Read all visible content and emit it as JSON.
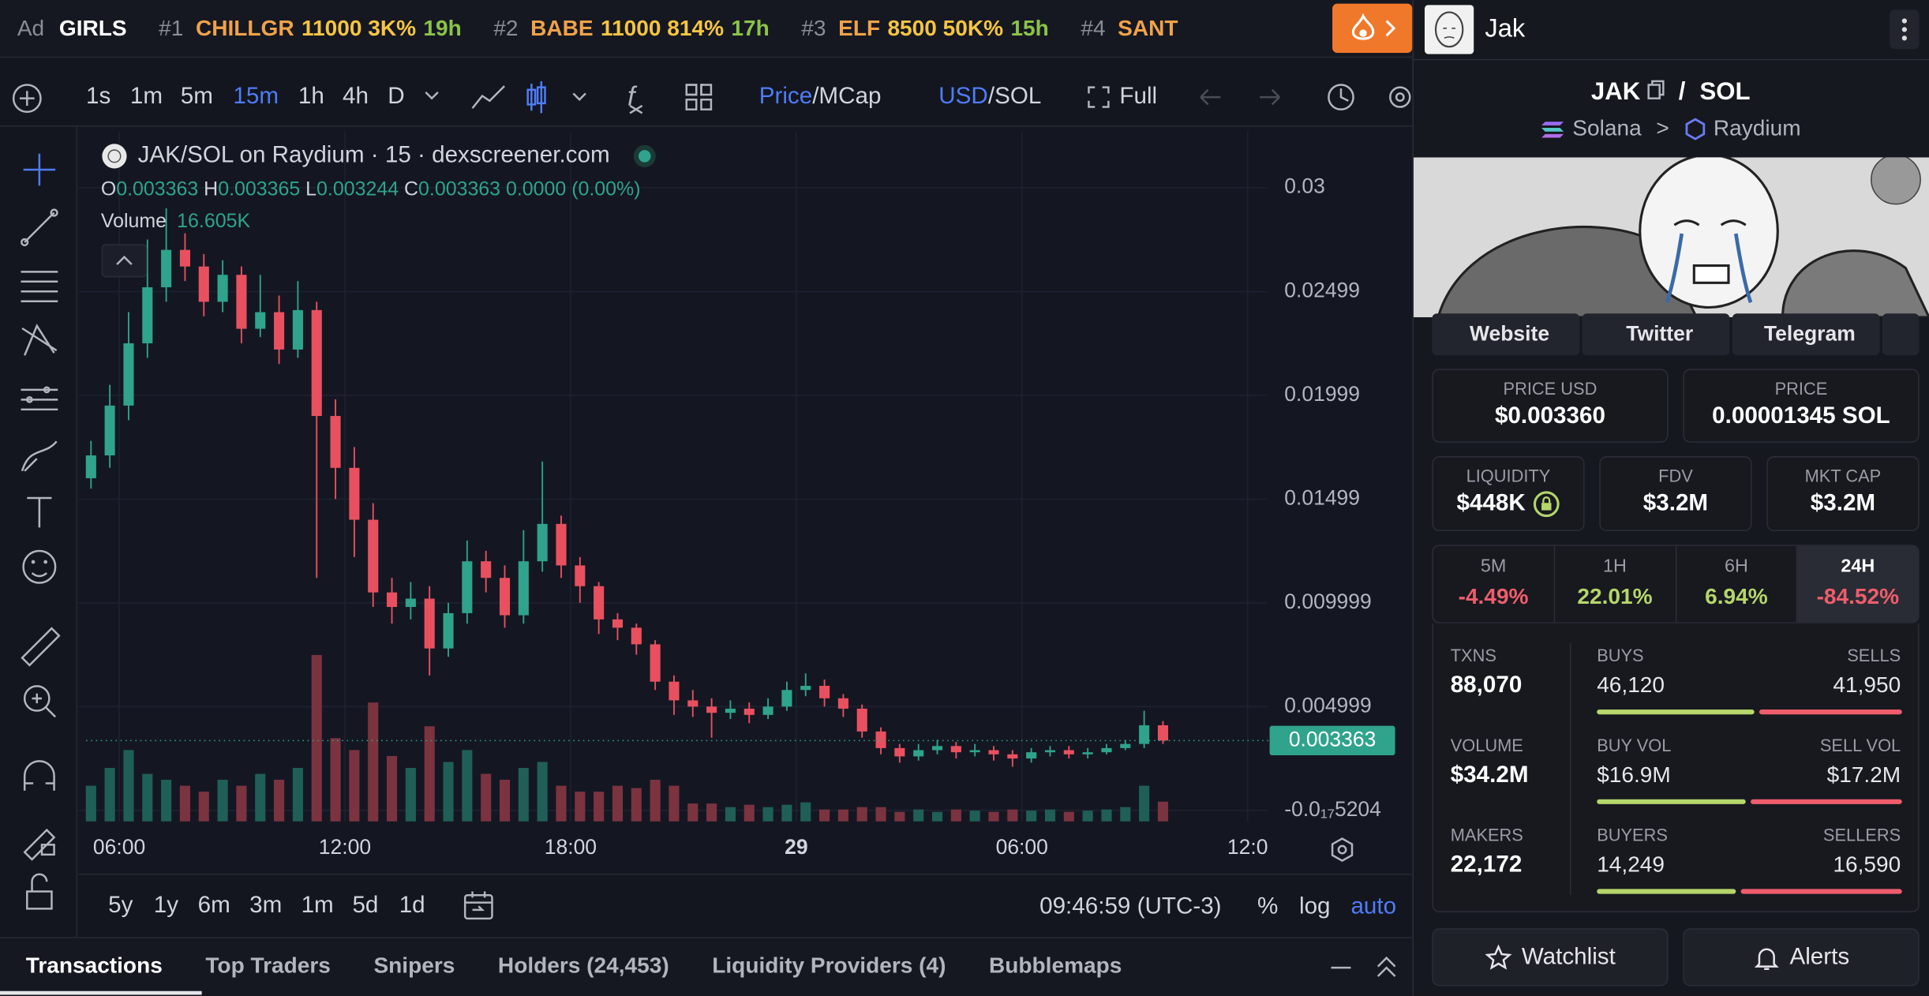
{
  "ticker": {
    "ad": "Ad",
    "ad_name": "GIRLS",
    "items": [
      {
        "rank": "#1",
        "name": "CHILLGR",
        "boost": "11000",
        "change": "3K%",
        "age": "19h"
      },
      {
        "rank": "#2",
        "name": "BABE",
        "boost": "11000",
        "change": "814%",
        "age": "17h"
      },
      {
        "rank": "#3",
        "name": "ELF",
        "boost": "8500",
        "change": "50K%",
        "age": "15h"
      },
      {
        "rank": "#4",
        "name": "SANT"
      }
    ]
  },
  "toolbar": {
    "intervals": [
      "1s",
      "1m",
      "5m",
      "15m",
      "1h",
      "4h",
      "D"
    ],
    "active_interval": 3,
    "price": "Price",
    "mcap": "MCap",
    "usd": "USD",
    "sol": "SOL",
    "separator": "/",
    "full": "Full"
  },
  "chart_data": {
    "type": "candlestick",
    "title": "JAK/SOL on Raydium · 15 · dexscreener.com",
    "legend": {
      "o": "O",
      "o_value": "0.003363",
      "h": "H",
      "h_value": "0.003365",
      "l": "L",
      "l_value": "0.003244",
      "c": "C",
      "c_value": "0.003363",
      "change": "0.0000 (0.00%)",
      "volume": "Volume",
      "volume_value": "16.605K"
    },
    "colors": {
      "up": "#2fa38c",
      "down": "#e9505f",
      "volume_up": "#1f5f57",
      "volume_down": "#7b3340"
    },
    "x": [
      5.25,
      5.75,
      6.25,
      6.75,
      7.25,
      7.75,
      8.25,
      8.75,
      9.25,
      9.75,
      10.25,
      10.75,
      11.25,
      11.75,
      12.25,
      12.75,
      13.25,
      13.75,
      14.25,
      14.75,
      15.25,
      15.75,
      16.25,
      16.75,
      17.25,
      17.75,
      18.25,
      18.75,
      19.25,
      19.75,
      20.25,
      20.75,
      21.25,
      21.75,
      22.25,
      22.75,
      23.25,
      23.75,
      24.25,
      24.75,
      25.25,
      25.75,
      26.25,
      26.75,
      27.25,
      27.75,
      28.25,
      28.75,
      29.25,
      29.75,
      30.25,
      30.75,
      31.25,
      31.75,
      32.25,
      32.75,
      33.25,
      33.75
    ],
    "open": [
      0.016,
      0.0171,
      0.0195,
      0.0225,
      0.0252,
      0.027,
      0.0262,
      0.0245,
      0.0258,
      0.0232,
      0.024,
      0.0222,
      0.0241,
      0.019,
      0.0165,
      0.014,
      0.0105,
      0.0098,
      0.0102,
      0.0078,
      0.0095,
      0.012,
      0.0112,
      0.0094,
      0.012,
      0.0138,
      0.0118,
      0.0108,
      0.0092,
      0.0088,
      0.008,
      0.0062,
      0.0053,
      0.005,
      0.0047,
      0.0049,
      0.0046,
      0.005,
      0.0058,
      0.006,
      0.0054,
      0.0049,
      0.0038,
      0.003,
      0.0026,
      0.0029,
      0.0031,
      0.0028,
      0.0029,
      0.0027,
      0.0025,
      0.0028,
      0.0029,
      0.0027,
      0.0028,
      0.003,
      0.0032,
      0.0041
    ],
    "high": [
      0.0178,
      0.0205,
      0.024,
      0.0275,
      0.029,
      0.0278,
      0.0268,
      0.0265,
      0.0262,
      0.0258,
      0.0248,
      0.0255,
      0.0245,
      0.0198,
      0.0175,
      0.0148,
      0.0112,
      0.011,
      0.0108,
      0.01,
      0.013,
      0.0125,
      0.0118,
      0.0135,
      0.0168,
      0.0142,
      0.0122,
      0.011,
      0.0095,
      0.009,
      0.0082,
      0.0065,
      0.0058,
      0.0054,
      0.0053,
      0.0052,
      0.0054,
      0.0062,
      0.0066,
      0.0063,
      0.0056,
      0.0051,
      0.004,
      0.0032,
      0.0032,
      0.0034,
      0.0033,
      0.0032,
      0.0031,
      0.0029,
      0.003,
      0.0031,
      0.0031,
      0.003,
      0.0032,
      0.0034,
      0.0048,
      0.0043
    ],
    "low": [
      0.0155,
      0.0165,
      0.0188,
      0.0218,
      0.0245,
      0.0255,
      0.0238,
      0.024,
      0.0225,
      0.0228,
      0.0215,
      0.0218,
      0.0112,
      0.015,
      0.0122,
      0.0098,
      0.009,
      0.0092,
      0.0065,
      0.0074,
      0.009,
      0.0105,
      0.0088,
      0.009,
      0.0115,
      0.0112,
      0.01,
      0.0085,
      0.0082,
      0.0075,
      0.0058,
      0.0046,
      0.0045,
      0.0035,
      0.0044,
      0.0042,
      0.0044,
      0.0048,
      0.0055,
      0.005,
      0.0045,
      0.0035,
      0.0027,
      0.0023,
      0.0024,
      0.0027,
      0.0025,
      0.0026,
      0.0024,
      0.0021,
      0.0023,
      0.0026,
      0.0025,
      0.0025,
      0.0027,
      0.0029,
      0.003,
      0.0032
    ],
    "close": [
      0.0171,
      0.0195,
      0.0225,
      0.0252,
      0.027,
      0.0262,
      0.0245,
      0.0258,
      0.0232,
      0.024,
      0.0222,
      0.0241,
      0.019,
      0.0165,
      0.014,
      0.0105,
      0.0098,
      0.0102,
      0.0078,
      0.0095,
      0.012,
      0.0112,
      0.0094,
      0.012,
      0.0138,
      0.0118,
      0.0108,
      0.0092,
      0.0088,
      0.008,
      0.0062,
      0.0053,
      0.005,
      0.0047,
      0.0049,
      0.0046,
      0.005,
      0.0058,
      0.006,
      0.0054,
      0.0049,
      0.0038,
      0.003,
      0.0026,
      0.0029,
      0.0031,
      0.0028,
      0.0029,
      0.0027,
      0.0025,
      0.0028,
      0.0029,
      0.0027,
      0.0028,
      0.003,
      0.0032,
      0.0041,
      0.003363
    ],
    "volume": [
      30,
      45,
      60,
      40,
      35,
      30,
      25,
      35,
      30,
      40,
      35,
      45,
      140,
      70,
      60,
      100,
      55,
      45,
      80,
      50,
      60,
      40,
      35,
      45,
      50,
      30,
      25,
      25,
      30,
      28,
      35,
      30,
      15,
      15,
      12,
      14,
      12,
      14,
      16,
      10,
      10,
      12,
      12,
      8,
      10,
      8,
      10,
      9,
      8,
      10,
      9,
      10,
      8,
      9,
      10,
      12,
      30,
      16.605
    ],
    "vlim": [
      0,
      150
    ],
    "xlim": [
      5.12,
      36.52
    ],
    "xticks": [
      {
        "value": 6,
        "label": "06:00"
      },
      {
        "value": 12,
        "label": "12:00"
      },
      {
        "value": 18,
        "label": "18:00"
      },
      {
        "value": 24,
        "label": "29"
      },
      {
        "value": 30,
        "label": "06:00"
      },
      {
        "value": 36,
        "label": "12:0"
      }
    ],
    "ylim": [
      -0.00053,
      0.0327
    ],
    "yticks": [
      0.03,
      0.02499,
      0.01999,
      0.01499,
      0.009999,
      0.004999,
      {
        "value": -5.204e-18,
        "label": "-0.0₁₇5204"
      }
    ],
    "grid": true
  },
  "range": {
    "periods": [
      "5y",
      "1y",
      "6m",
      "3m",
      "1m",
      "5d",
      "1d"
    ],
    "time": "09:46:59 (UTC-3)",
    "percent": "%",
    "log": "log",
    "auto": "auto"
  },
  "tabs": [
    "Transactions",
    "Top Traders",
    "Snipers",
    "Holders (24,453)",
    "Liquidity Providers (4)",
    "Bubblemaps"
  ],
  "pair": {
    "name": "Jak",
    "base": "JAK",
    "separator": "/",
    "quote": "SOL",
    "chain": "Solana",
    "chevron": ">",
    "dex": "Raydium",
    "links": [
      "Website",
      "Twitter",
      "Telegram"
    ],
    "price_usd": {
      "label": "PRICE USD",
      "value": "$0.003360"
    },
    "price": {
      "label": "PRICE",
      "value": "0.00001345 SOL"
    },
    "liquidity": {
      "label": "LIQUIDITY",
      "value": "$448K"
    },
    "fdv": {
      "label": "FDV",
      "value": "$3.2M"
    },
    "mkt_cap": {
      "label": "MKT CAP",
      "value": "$3.2M"
    },
    "changes": [
      {
        "label": "5M",
        "value": "-4.49%"
      },
      {
        "label": "1H",
        "value": "22.01%"
      },
      {
        "label": "6H",
        "value": "6.94%"
      },
      {
        "label": "24H",
        "value": "-84.52%"
      }
    ],
    "stats": [
      {
        "label": "TXNS",
        "value": "88,070",
        "left_label": "BUYS",
        "left": {
          "value": 46120,
          "label": "46,120"
        },
        "right_label": "SELLS",
        "right": {
          "value": 41950,
          "label": "41,950"
        }
      },
      {
        "label": "VOLUME",
        "value": "$34.2M",
        "left_label": "BUY VOL",
        "left": {
          "value": 16900000,
          "label": "$16.9M"
        },
        "right_label": "SELL VOL",
        "right": {
          "value": 17200000,
          "label": "$17.2M"
        }
      },
      {
        "label": "MAKERS",
        "value": "22,172",
        "left_label": "BUYERS",
        "left": {
          "value": 14249,
          "label": "14,249"
        },
        "right_label": "SELLERS",
        "right": {
          "value": 16590,
          "label": "16,590"
        }
      }
    ],
    "watchlist": "Watchlist",
    "alerts": "Alerts"
  }
}
